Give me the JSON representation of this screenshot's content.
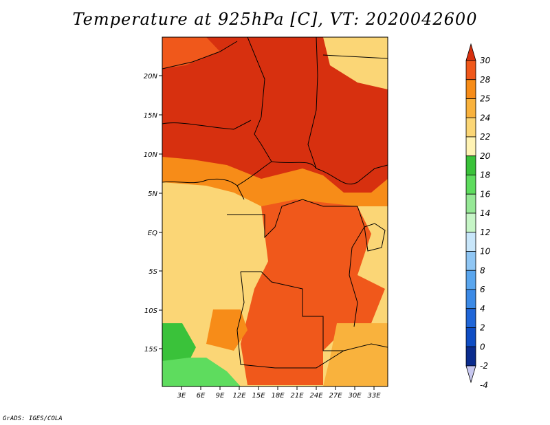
{
  "title": "Temperature at 925hPa [C], VT: 2020042600",
  "credit": "GrADS: IGES/COLA",
  "map": {
    "lat_labels": [
      "20N",
      "15N",
      "10N",
      "5N",
      "EQ",
      "5S",
      "10S",
      "15S"
    ],
    "lon_labels": [
      "3E",
      "6E",
      "9E",
      "12E",
      "15E",
      "18E",
      "21E",
      "24E",
      "27E",
      "30E",
      "33E"
    ]
  },
  "colorbar": {
    "labels": [
      "30",
      "28",
      "25",
      "24",
      "22",
      "20",
      "18",
      "16",
      "14",
      "12",
      "10",
      "8",
      "6",
      "4",
      "2",
      "0",
      "-2",
      "-4"
    ],
    "colors": [
      "#d7300f",
      "#f0581b",
      "#f78c18",
      "#f9b23d",
      "#fbd676",
      "#fff3b4",
      "#3ac23a",
      "#5edc5e",
      "#96e896",
      "#c6f5c6",
      "#c8e6fa",
      "#8fc6f4",
      "#5aa6ee",
      "#3c8ae6",
      "#2066d8",
      "#0f4dc4",
      "#0b2c8e",
      "#c8c8f0"
    ]
  }
}
